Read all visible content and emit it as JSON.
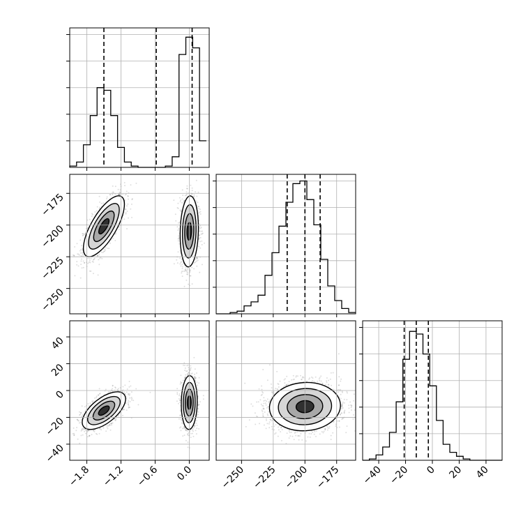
{
  "chart_data": {
    "type": "corner",
    "grid": true,
    "parameters": [
      {
        "range": [
          -2.1,
          0.35
        ],
        "ticks": [
          -1.8,
          -1.2,
          -0.6,
          0.0
        ],
        "tick_labels": [
          "−1.8",
          "−1.2",
          "−0.6",
          "0.0"
        ]
      },
      {
        "range": [
          -270,
          -160
        ],
        "ticks": [
          -250,
          -225,
          -200,
          -175
        ],
        "tick_labels": [
          "−250",
          "−225",
          "−200",
          "−175"
        ]
      },
      {
        "range": [
          -52,
          52
        ],
        "ticks": [
          -40,
          -20,
          0,
          20,
          40
        ],
        "tick_labels": [
          "−40",
          "−20",
          "0",
          "20",
          "40"
        ]
      }
    ],
    "histograms": [
      {
        "param": 0,
        "bin_edges": [
          -2.1,
          -1.98,
          -1.86,
          -1.74,
          -1.62,
          -1.5,
          -1.38,
          -1.26,
          -1.14,
          -1.02,
          -0.9,
          -0.78,
          -0.66,
          -0.54,
          -0.42,
          -0.3,
          -0.18,
          -0.06,
          0.06,
          0.18,
          0.3
        ],
        "counts": [
          0.01,
          0.04,
          0.17,
          0.39,
          0.6,
          0.58,
          0.39,
          0.15,
          0.04,
          0.01,
          0,
          0,
          0,
          0,
          0.01,
          0.08,
          0.85,
          0.98,
          0.9,
          0.2
        ],
        "quantiles": [
          -1.5,
          -0.58,
          0.05
        ],
        "ylim": [
          0,
          1.05
        ]
      },
      {
        "param": 1,
        "bin_edges": [
          -270,
          -264.5,
          -259,
          -253.5,
          -248,
          -242.5,
          -237,
          -231.5,
          -226,
          -220.5,
          -215,
          -209.5,
          -204,
          -198.5,
          -193,
          -187.5,
          -182,
          -176.5,
          -171,
          -165.5,
          -160
        ],
        "counts": [
          0,
          0,
          0.01,
          0.02,
          0.06,
          0.09,
          0.14,
          0.29,
          0.46,
          0.66,
          0.84,
          0.98,
          1.0,
          0.86,
          0.67,
          0.41,
          0.21,
          0.1,
          0.04,
          0.01
        ],
        "quantiles": [
          -214,
          -200,
          -188
        ],
        "ylim": [
          0,
          1.05
        ]
      },
      {
        "param": 2,
        "bin_edges": [
          -52,
          -47,
          -42,
          -37,
          -32,
          -27,
          -22,
          -17,
          -12,
          -7,
          -2,
          3,
          8,
          13,
          18,
          23,
          28,
          33,
          38,
          43,
          48,
          52
        ],
        "counts": [
          0,
          0.01,
          0.04,
          0.1,
          0.21,
          0.44,
          0.76,
          0.97,
          0.95,
          0.8,
          0.56,
          0.3,
          0.12,
          0.06,
          0.03,
          0.01,
          0,
          0,
          0,
          0,
          0
        ],
        "quantiles": [
          -21,
          -12,
          -3
        ],
        "ylim": [
          0,
          1.05
        ]
      }
    ],
    "scatter_2d": [
      {
        "x_param": 0,
        "y_param": 1,
        "clusters": [
          {
            "center": [
              -1.5,
              -201
            ],
            "sigma": [
              0.18,
              12
            ],
            "corr": 0.72,
            "n": 1300
          },
          {
            "center": [
              0.0,
              -205
            ],
            "sigma": [
              0.08,
              14
            ],
            "corr": 0.1,
            "n": 1300
          }
        ]
      },
      {
        "x_param": 0,
        "y_param": 2,
        "clusters": [
          {
            "center": [
              -1.5,
              -15
            ],
            "sigma": [
              0.19,
              7
            ],
            "corr": 0.62,
            "n": 1300
          },
          {
            "center": [
              0.0,
              -9
            ],
            "sigma": [
              0.07,
              10
            ],
            "corr": 0.05,
            "n": 1300
          }
        ]
      },
      {
        "x_param": 1,
        "y_param": 2,
        "clusters": [
          {
            "center": [
              -200,
              -12
            ],
            "sigma": [
              14,
              9
            ],
            "corr": 0.05,
            "n": 2200
          }
        ]
      }
    ]
  }
}
